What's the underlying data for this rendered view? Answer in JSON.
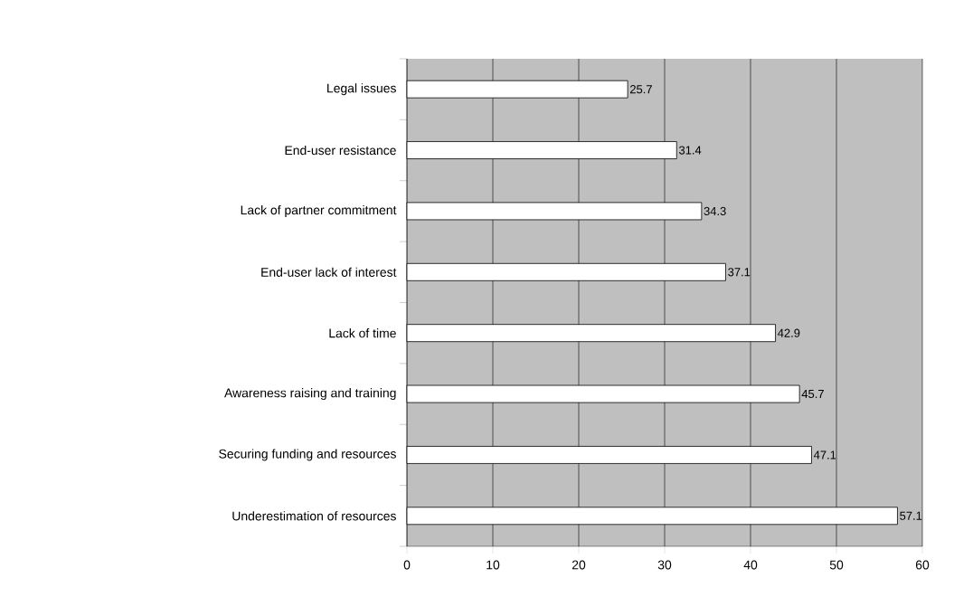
{
  "chart_data": {
    "type": "bar",
    "orientation": "horizontal",
    "categories": [
      "Legal issues",
      "End-user resistance",
      "Lack of partner commitment",
      "End-user lack of interest",
      "Lack of time",
      "Awareness raising and training",
      "Securing funding and resources",
      "Underestimation of resources"
    ],
    "values": [
      25.7,
      31.4,
      34.3,
      37.1,
      42.9,
      45.7,
      47.1,
      57.1
    ],
    "color": "#ffffff",
    "xlim": [
      0,
      60
    ],
    "xticks": [
      0,
      10,
      20,
      30,
      40,
      50,
      60
    ],
    "grid": "x",
    "data_labels": true
  }
}
